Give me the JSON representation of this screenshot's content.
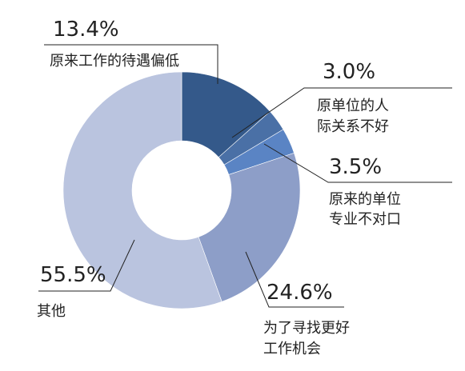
{
  "chart_data": {
    "type": "pie",
    "subtype": "donut",
    "slices": [
      {
        "label": "原来工作的待遇偏低",
        "label_lines": [
          "原来工作的待遇偏低"
        ],
        "value": 13.4,
        "value_label": "13.4%",
        "color": "#34598a"
      },
      {
        "label": "原单位的人际关系不好",
        "label_lines": [
          "原单位的人",
          "际关系不好"
        ],
        "value": 3.0,
        "value_label": "3.0%",
        "color": "#4a70a6"
      },
      {
        "label": "原来的单位专业不对口",
        "label_lines": [
          "原来的单位",
          "专业不对口"
        ],
        "value": 3.5,
        "value_label": "3.5%",
        "color": "#5a84c4"
      },
      {
        "label": "为了寻找更好工作机会",
        "label_lines": [
          "为了寻找更好",
          "工作机会"
        ],
        "value": 24.6,
        "value_label": "24.6%",
        "color": "#8d9ec8"
      },
      {
        "label": "其他",
        "label_lines": [
          "其他"
        ],
        "value": 55.5,
        "value_label": "55.5%",
        "color": "#bac4df"
      }
    ]
  }
}
